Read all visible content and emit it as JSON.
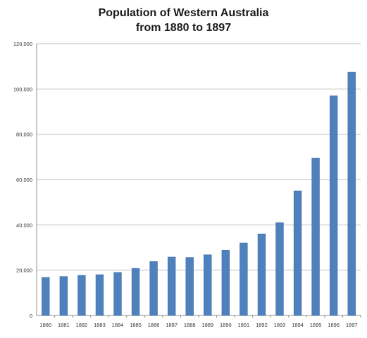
{
  "chart_data": {
    "type": "bar",
    "title_lines": [
      "Population of Western Australia",
      "from 1880 to 1897"
    ],
    "xlabel": "",
    "ylabel": "",
    "categories": [
      "1880",
      "1881",
      "1882",
      "1883",
      "1884",
      "1885",
      "1886",
      "1887",
      "1888",
      "1889",
      "1890",
      "1891",
      "1892",
      "1893",
      "1894",
      "1895",
      "1896",
      "1897"
    ],
    "values": [
      16800,
      17200,
      17700,
      18000,
      19000,
      20800,
      23800,
      25800,
      25600,
      26800,
      28800,
      32000,
      36000,
      41000,
      55000,
      69500,
      97000,
      107500
    ],
    "ylim": [
      0,
      120000
    ],
    "yticks": [
      0,
      20000,
      40000,
      60000,
      80000,
      100000,
      120000
    ],
    "ytick_labels": [
      "0",
      "20,000",
      "40,000",
      "60,000",
      "80,000",
      "100,000",
      "120,000"
    ],
    "grid": true,
    "legend": "none",
    "colors": {
      "bar": "#4f81bd",
      "bar_edge": "#3a6aa3",
      "grid": "#bfbfbf",
      "axis": "#8c8c8c"
    }
  }
}
